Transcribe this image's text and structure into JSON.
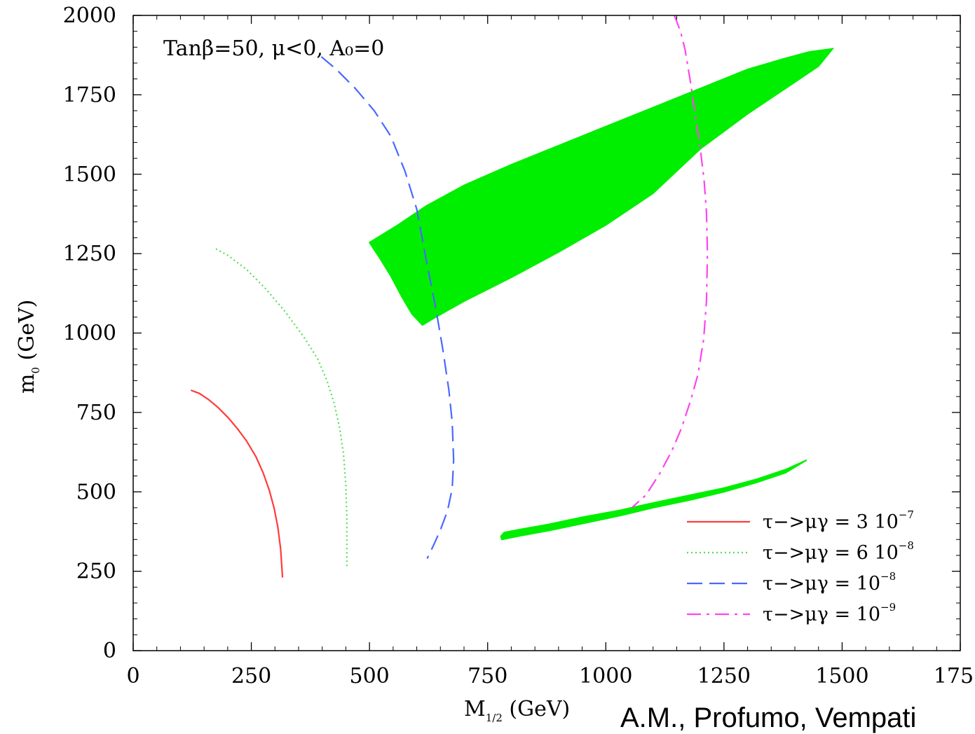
{
  "chart_data": {
    "type": "line",
    "annotation": "Tanβ=50, μ<0, A₀=0",
    "xlabel": "M",
    "xlabel_sub": "1/2",
    "xlabel_unit": " (GeV)",
    "ylabel": "m",
    "ylabel_sub": "0",
    "ylabel_unit": " (GeV)",
    "xlim": [
      0,
      1750
    ],
    "ylim": [
      0,
      2000
    ],
    "x_ticks": [
      "0",
      "250",
      "500",
      "750",
      "1000",
      "1250",
      "1500",
      "1750"
    ],
    "y_ticks": [
      "0",
      "250",
      "500",
      "750",
      "1000",
      "1250",
      "1500",
      "1750",
      "2000"
    ],
    "legend_position": "bottom-right",
    "series": [
      {
        "legend": "τ−>μγ = 3 10",
        "exp": "−7",
        "color": "#ff3b3b",
        "dash": "solid",
        "points": [
          [
            122,
            820
          ],
          [
            140,
            810
          ],
          [
            160,
            790
          ],
          [
            180,
            765
          ],
          [
            200,
            735
          ],
          [
            220,
            700
          ],
          [
            240,
            660
          ],
          [
            260,
            610
          ],
          [
            275,
            560
          ],
          [
            288,
            505
          ],
          [
            298,
            450
          ],
          [
            306,
            390
          ],
          [
            312,
            320
          ],
          [
            316,
            230
          ]
        ]
      },
      {
        "legend": "τ−>μγ = 6 10",
        "exp": "−8",
        "color": "#55dd55",
        "dash": "dotted",
        "points": [
          [
            175,
            1265
          ],
          [
            200,
            1245
          ],
          [
            240,
            1200
          ],
          [
            280,
            1140
          ],
          [
            320,
            1070
          ],
          [
            360,
            990
          ],
          [
            390,
            920
          ],
          [
            410,
            850
          ],
          [
            425,
            780
          ],
          [
            437,
            700
          ],
          [
            445,
            620
          ],
          [
            450,
            520
          ],
          [
            452,
            420
          ],
          [
            452,
            260
          ]
        ]
      },
      {
        "legend": "τ−>μγ = 10",
        "exp": "−8",
        "color": "#4a68ff",
        "dash": "dashed",
        "points": [
          [
            398,
            1870
          ],
          [
            430,
            1830
          ],
          [
            470,
            1770
          ],
          [
            510,
            1700
          ],
          [
            545,
            1620
          ],
          [
            575,
            1510
          ],
          [
            600,
            1390
          ],
          [
            620,
            1230
          ],
          [
            640,
            1080
          ],
          [
            655,
            950
          ],
          [
            668,
            820
          ],
          [
            675,
            720
          ],
          [
            678,
            600
          ],
          [
            675,
            510
          ],
          [
            665,
            440
          ],
          [
            650,
            380
          ],
          [
            635,
            330
          ],
          [
            622,
            290
          ]
        ]
      },
      {
        "legend": "τ−>μγ = 10",
        "exp": "−9",
        "color": "#ff44ee",
        "dash": "dashdot",
        "points": [
          [
            1145,
            2000
          ],
          [
            1158,
            1950
          ],
          [
            1168,
            1890
          ],
          [
            1178,
            1800
          ],
          [
            1188,
            1700
          ],
          [
            1200,
            1580
          ],
          [
            1208,
            1480
          ],
          [
            1213,
            1380
          ],
          [
            1215,
            1250
          ],
          [
            1213,
            1100
          ],
          [
            1207,
            980
          ],
          [
            1195,
            870
          ],
          [
            1180,
            790
          ],
          [
            1160,
            700
          ],
          [
            1140,
            630
          ],
          [
            1115,
            560
          ],
          [
            1085,
            490
          ],
          [
            1055,
            450
          ]
        ]
      }
    ],
    "regions": [
      {
        "color": "#00ee00",
        "points": [
          [
            1480,
            1895
          ],
          [
            1430,
            1885
          ],
          [
            1380,
            1865
          ],
          [
            1300,
            1830
          ],
          [
            1200,
            1770
          ],
          [
            1100,
            1710
          ],
          [
            1000,
            1650
          ],
          [
            900,
            1590
          ],
          [
            800,
            1530
          ],
          [
            700,
            1465
          ],
          [
            620,
            1400
          ],
          [
            560,
            1340
          ],
          [
            500,
            1285
          ],
          [
            520,
            1240
          ],
          [
            545,
            1180
          ],
          [
            570,
            1110
          ],
          [
            590,
            1060
          ],
          [
            612,
            1025
          ],
          [
            640,
            1050
          ],
          [
            700,
            1100
          ],
          [
            800,
            1175
          ],
          [
            900,
            1255
          ],
          [
            1000,
            1340
          ],
          [
            1100,
            1440
          ],
          [
            1200,
            1580
          ],
          [
            1300,
            1690
          ],
          [
            1400,
            1790
          ],
          [
            1450,
            1840
          ]
        ]
      },
      {
        "color": "#00ee00",
        "points": [
          [
            780,
            350
          ],
          [
            820,
            362
          ],
          [
            880,
            378
          ],
          [
            950,
            400
          ],
          [
            1030,
            425
          ],
          [
            1100,
            450
          ],
          [
            1180,
            475
          ],
          [
            1250,
            500
          ],
          [
            1320,
            530
          ],
          [
            1380,
            560
          ],
          [
            1425,
            600
          ],
          [
            1380,
            570
          ],
          [
            1320,
            540
          ],
          [
            1250,
            512
          ],
          [
            1180,
            490
          ],
          [
            1100,
            465
          ],
          [
            1030,
            442
          ],
          [
            950,
            420
          ],
          [
            880,
            398
          ],
          [
            820,
            382
          ],
          [
            785,
            372
          ],
          [
            778,
            360
          ]
        ]
      }
    ]
  },
  "credit": "A.M., Profumo, Vempati"
}
